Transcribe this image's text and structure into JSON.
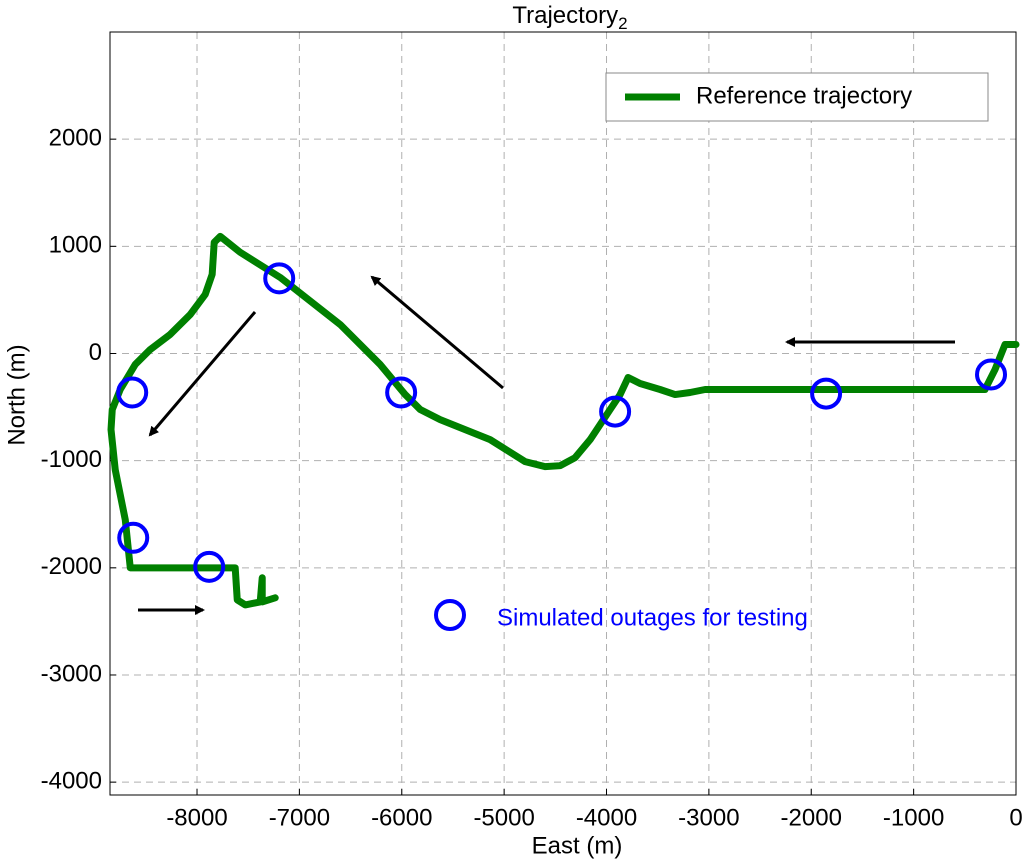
{
  "chart_data": {
    "type": "line",
    "title": "Trajectory",
    "title_subscript": "2",
    "x_label": "East (m)",
    "y_label": "North (m)",
    "xlim": [
      -8850,
      0
    ],
    "ylim": [
      -4120,
      3000
    ],
    "xticks": [
      -8000,
      -7000,
      -6000,
      -5000,
      -4000,
      -3000,
      -2000,
      -1000,
      0
    ],
    "yticks": [
      -4000,
      -3000,
      -2000,
      -1000,
      0,
      1000,
      2000
    ],
    "grid": true,
    "legend": "upper right",
    "series": [
      {
        "name": "Reference trajectory",
        "color": "#008000",
        "kind": "line",
        "x": [
          0,
          -107,
          -205,
          -303,
          -3037,
          -3184,
          -3330,
          -3477,
          -3672,
          -3789,
          -3867,
          -3965,
          -4160,
          -4307,
          -4453,
          -4600,
          -4795,
          -5137,
          -5625,
          -5820,
          -5967,
          -6211,
          -6602,
          -7188,
          -7578,
          -7773,
          -7832,
          -7852,
          -7920,
          -8066,
          -8262,
          -8457,
          -8604,
          -8750,
          -8828,
          -8840,
          -8799,
          -8701,
          -8652,
          -7627,
          -7607,
          -7529,
          -7383,
          -7363,
          -7363,
          -7236
        ],
        "values": [
          84,
          84,
          -150,
          -336,
          -336,
          -364,
          -383,
          -336,
          -280,
          -224,
          -383,
          -523,
          -804,
          -972,
          -1047,
          -1056,
          -1009,
          -804,
          -617,
          -523,
          -383,
          -103,
          271,
          710,
          944,
          1093,
          1037,
          738,
          551,
          364,
          178,
          37,
          -103,
          -336,
          -523,
          -710,
          -1084,
          -1551,
          -2000,
          -2000,
          -2299,
          -2346,
          -2318,
          -2093,
          -2318,
          -2280
        ]
      },
      {
        "name": "Simulated outages for testing",
        "color": "#0000ff",
        "kind": "scatter",
        "x": [
          -244,
          -1855,
          -3916,
          -6006,
          -7197,
          -8633,
          -8623,
          -7881
        ],
        "values": [
          -196,
          -374,
          -542,
          -364,
          701,
          -364,
          -1720,
          -1991
        ]
      }
    ]
  }
}
